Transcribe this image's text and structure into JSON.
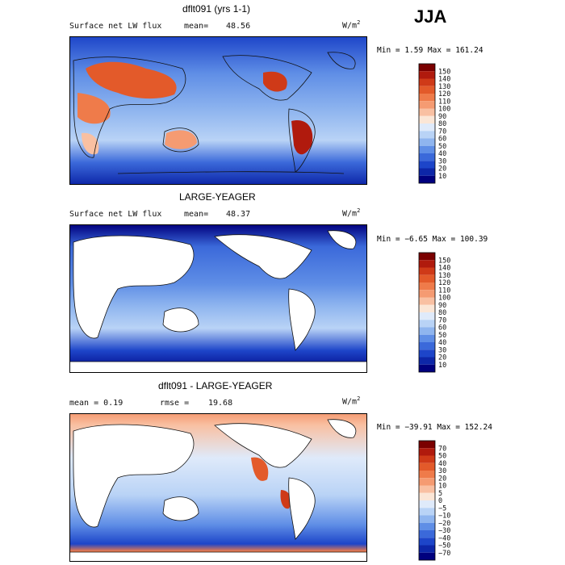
{
  "season": "JJA",
  "panels": [
    {
      "title": "dflt091 (yrs 1-1)",
      "stat_left": "Surface net LW flux",
      "stat_right_label": "mean=",
      "stat_right_value": "48.56",
      "units": "W/m",
      "units_exp": "2",
      "minmax": "Min =    1.59 Max = 161.24",
      "colorbar": {
        "labels": [
          "150",
          "140",
          "130",
          "120",
          "110",
          "100",
          "90",
          "80",
          "70",
          "60",
          "50",
          "40",
          "30",
          "20",
          "10"
        ],
        "colors": [
          "#7a0000",
          "#b01a0d",
          "#cf3a18",
          "#e35a2a",
          "#ef7b4a",
          "#f59b72",
          "#f9c0a2",
          "#fbe6d6",
          "#dfeafa",
          "#b9d3f6",
          "#8fb5ef",
          "#5f8ee6",
          "#3b69da",
          "#1d45c9",
          "#0d26a8",
          "#00007e"
        ]
      }
    },
    {
      "title": "LARGE-YEAGER",
      "stat_left": "Surface net LW flux",
      "stat_right_label": "mean=",
      "stat_right_value": "48.37",
      "units": "W/m",
      "units_exp": "2",
      "minmax": "Min =  −6.65 Max = 100.39",
      "colorbar": {
        "labels": [
          "150",
          "140",
          "130",
          "120",
          "110",
          "100",
          "90",
          "80",
          "70",
          "60",
          "50",
          "40",
          "30",
          "20",
          "10"
        ],
        "colors": [
          "#7a0000",
          "#b01a0d",
          "#cf3a18",
          "#e35a2a",
          "#ef7b4a",
          "#f59b72",
          "#f9c0a2",
          "#fbe6d6",
          "#dfeafa",
          "#b9d3f6",
          "#8fb5ef",
          "#5f8ee6",
          "#3b69da",
          "#1d45c9",
          "#0d26a8",
          "#00007e"
        ]
      }
    },
    {
      "title": "dflt091 - LARGE-YEAGER",
      "stat_left": "mean =    0.19",
      "stat_right_label": "rmse =",
      "stat_right_value": "19.68",
      "units": "W/m",
      "units_exp": "2",
      "minmax": "Min = −39.91 Max = 152.24",
      "colorbar": {
        "labels": [
          "70",
          "50",
          "40",
          "30",
          "20",
          "10",
          "5",
          "0",
          "−5",
          "−10",
          "−20",
          "−30",
          "−40",
          "−50",
          "−70"
        ],
        "colors": [
          "#7a0000",
          "#b01a0d",
          "#cf3a18",
          "#e35a2a",
          "#ef7b4a",
          "#f59b72",
          "#f9c0a2",
          "#fbe6d6",
          "#dfeafa",
          "#b9d3f6",
          "#8fb5ef",
          "#5f8ee6",
          "#3b69da",
          "#1d45c9",
          "#0d26a8",
          "#00007e"
        ]
      }
    }
  ],
  "chart_data": [
    {
      "type": "heatmap",
      "title": "dflt091 (yrs 1-1)",
      "field": "Surface net LW flux",
      "units": "W/m2",
      "mean": 48.56,
      "min": 1.59,
      "max": 161.24,
      "contour_levels": [
        10,
        20,
        30,
        40,
        50,
        60,
        70,
        80,
        90,
        100,
        110,
        120,
        130,
        140,
        150
      ]
    },
    {
      "type": "heatmap",
      "title": "LARGE-YEAGER",
      "field": "Surface net LW flux",
      "units": "W/m2",
      "mean": 48.37,
      "min": -6.65,
      "max": 100.39,
      "contour_levels": [
        10,
        20,
        30,
        40,
        50,
        60,
        70,
        80,
        90,
        100,
        110,
        120,
        130,
        140,
        150
      ]
    },
    {
      "type": "heatmap",
      "title": "dflt091 - LARGE-YEAGER",
      "units": "W/m2",
      "mean": 0.19,
      "rmse": 19.68,
      "min": -39.91,
      "max": 152.24,
      "contour_levels": [
        -70,
        -50,
        -40,
        -30,
        -20,
        -10,
        -5,
        0,
        5,
        10,
        20,
        30,
        40,
        50,
        70
      ]
    }
  ]
}
